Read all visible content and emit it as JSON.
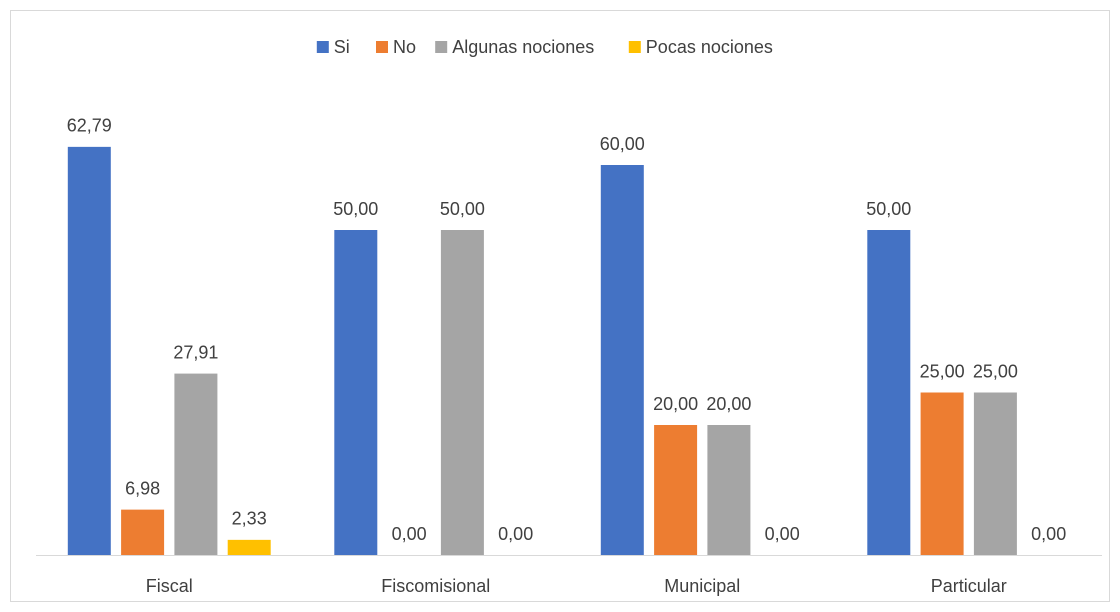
{
  "chart_data": {
    "type": "bar",
    "categories": [
      "Fiscal",
      "Fiscomisional",
      "Municipal",
      "Particular"
    ],
    "series": [
      {
        "name": "Si",
        "color": "#4472c4",
        "values": [
          62.79,
          50,
          60,
          50
        ],
        "value_labels": [
          "62,79",
          "50,00",
          "60,00",
          "50,00"
        ]
      },
      {
        "name": "No",
        "color": "#ed7d31",
        "values": [
          6.98,
          0,
          20,
          25
        ],
        "value_labels": [
          "6,98",
          "0,00",
          "20,00",
          "25,00"
        ]
      },
      {
        "name": "Algunas nociones",
        "color": "#a5a5a5",
        "values": [
          27.91,
          50,
          20,
          25
        ],
        "value_labels": [
          "27,91",
          "50,00",
          "20,00",
          "25,00"
        ]
      },
      {
        "name": "Pocas nociones",
        "color": "#ffc000",
        "values": [
          2.33,
          0,
          0,
          0
        ],
        "value_labels": [
          "2,33",
          "0,00",
          "0,00",
          "0,00"
        ]
      }
    ],
    "ylim": [
      0,
      70
    ],
    "legend": "top"
  }
}
